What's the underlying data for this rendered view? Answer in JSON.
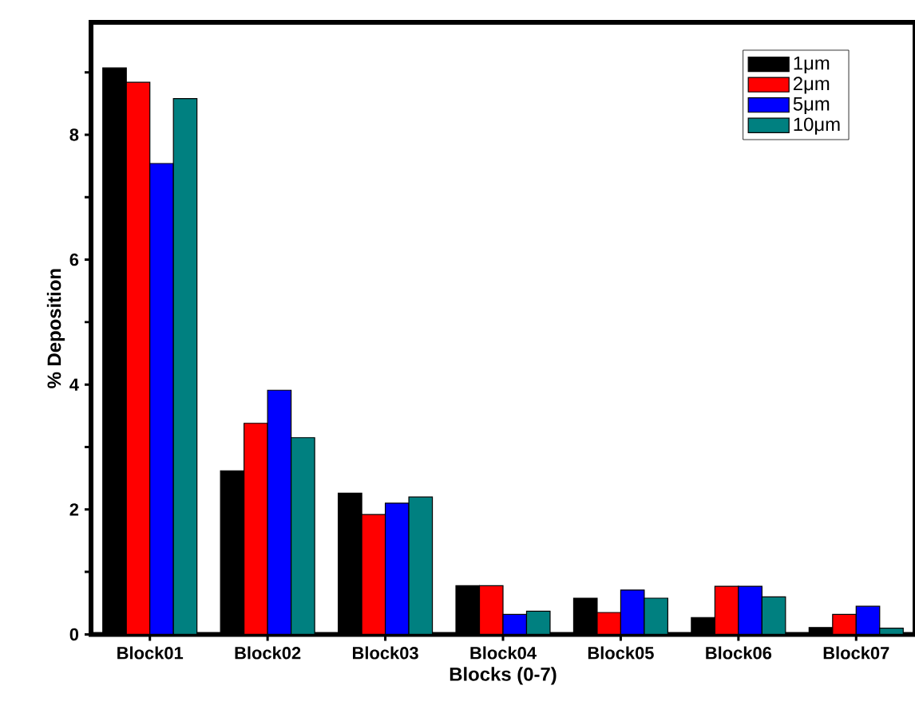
{
  "chart_data": {
    "type": "bar",
    "xlabel": "Blocks (0-7)",
    "ylabel": "% Deposition",
    "categories": [
      "Block01",
      "Block02",
      "Block03",
      "Block04",
      "Block05",
      "Block06",
      "Block07"
    ],
    "series": [
      {
        "name": "1μm",
        "color": "#000000",
        "values": [
          9.07,
          2.62,
          2.26,
          0.78,
          0.58,
          0.27,
          0.11
        ]
      },
      {
        "name": "2μm",
        "color": "#ff0000",
        "values": [
          8.84,
          3.38,
          1.92,
          0.78,
          0.35,
          0.77,
          0.32
        ]
      },
      {
        "name": "5μm",
        "color": "#0000ff",
        "values": [
          7.54,
          3.91,
          2.1,
          0.32,
          0.71,
          0.77,
          0.45
        ]
      },
      {
        "name": "10μm",
        "color": "#008080",
        "values": [
          8.58,
          3.15,
          2.2,
          0.37,
          0.58,
          0.6,
          0.1
        ]
      }
    ],
    "ylim": [
      0,
      9.8
    ],
    "yticks": [
      0,
      {
        "value": 1,
        "label": null
      },
      2,
      {
        "value": 3,
        "label": null
      },
      4,
      {
        "value": 5,
        "label": null
      },
      6,
      {
        "value": 7,
        "label": null
      },
      8,
      {
        "value": 9,
        "label": null
      }
    ],
    "legend": "top right",
    "grid": false
  }
}
